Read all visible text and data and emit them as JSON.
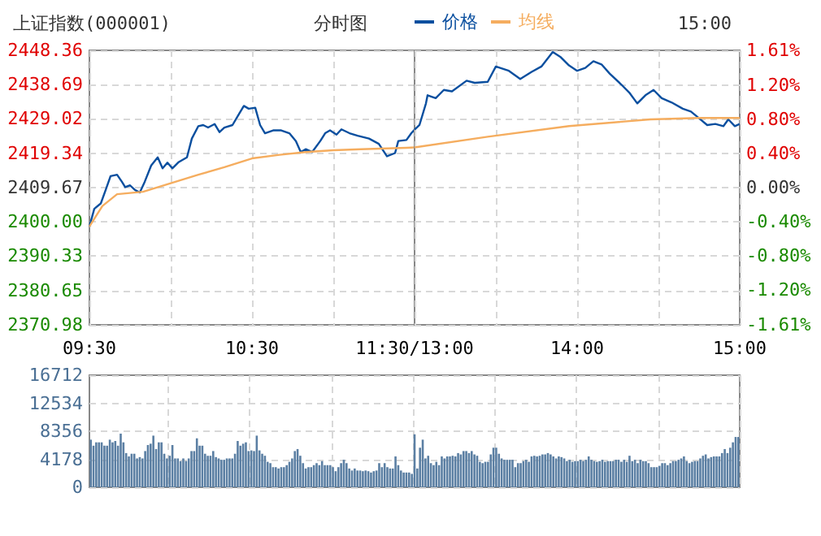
{
  "chart_data": [
    {
      "type": "line",
      "title": "上证指数(000001)",
      "subtitle": "分时图",
      "xlim": [
        9.5,
        11.5
      ],
      "xticks": [
        {
          "value": 9.5,
          "label": "09:30"
        },
        {
          "value": 10,
          "label": null
        },
        {
          "value": 10.5,
          "label": "10:30"
        },
        {
          "value": 11,
          "label": null
        },
        {
          "value": 11.5,
          "label": "11:30/13:00"
        }
      ],
      "ylim": [
        2370.98,
        2448.36
      ],
      "yticks": [
        2370.98,
        2380.65,
        2390.33,
        {
          "value": 2400,
          "label": "2400.00"
        },
        2409.67,
        2419.34,
        2429.02,
        2438.69,
        2448.36
      ],
      "grid": true,
      "legend": "top",
      "marker": "none",
      "line_style": "solid",
      "series": [
        {
          "name": "价格",
          "color": "#0a4f9f",
          "x": [
            9.5,
            9.53,
            9.57,
            9.6,
            9.63,
            9.67,
            9.7,
            9.72,
            9.75,
            9.78,
            9.81,
            9.84,
            9.88,
            9.92,
            9.95,
            9.98,
            10.01,
            10.05,
            10.1,
            10.13,
            10.17,
            10.2,
            10.23,
            10.27,
            10.3,
            10.33,
            10.38,
            10.42,
            10.45,
            10.48,
            10.52,
            10.55,
            10.58,
            10.63,
            10.68,
            10.73,
            10.77,
            10.8,
            10.83,
            10.87,
            10.92,
            10.95,
            10.98,
            11.02,
            11.05,
            11.1,
            11.15,
            11.22,
            11.28,
            11.33,
            11.38,
            11.4,
            11.45,
            11.48,
            11.5
          ],
          "values": [
            2398.7,
            2403.7,
            2405.2,
            2409.0,
            2412.9,
            2413.3,
            2411.3,
            2409.8,
            2410.3,
            2409.0,
            2408.3,
            2411.3,
            2415.9,
            2418.2,
            2415.1,
            2416.7,
            2415.1,
            2416.9,
            2418.2,
            2423.5,
            2427.0,
            2427.3,
            2426.6,
            2427.6,
            2425.3,
            2426.6,
            2427.3,
            2430.4,
            2432.7,
            2431.9,
            2432.2,
            2427.3,
            2425.0,
            2425.8,
            2425.8,
            2425.0,
            2422.8,
            2419.7,
            2420.5,
            2419.7,
            2422.8,
            2425.0,
            2425.8,
            2424.6,
            2426.1,
            2425.0,
            2424.3,
            2423.5,
            2422.0,
            2418.5,
            2419.4,
            2422.8,
            2423.1,
            2425.0,
            2426.0
          ]
        },
        {
          "name": "均线",
          "color": "#f5ad5f",
          "x": [
            9.5,
            9.58,
            9.67,
            9.83,
            10,
            10.17,
            10.33,
            10.5,
            10.67,
            10.83,
            11,
            11.17,
            11.45,
            11.5
          ],
          "values": [
            2398.7,
            2404.5,
            2407.8,
            2408.5,
            2410.9,
            2413.3,
            2415.4,
            2417.9,
            2418.9,
            2419.7,
            2420.2,
            2420.5,
            2420.9,
            2421.0
          ]
        }
      ]
    },
    {
      "type": "line",
      "annotations": [
        "15:00"
      ],
      "xlim": [
        13,
        15
      ],
      "xticks": [
        {
          "value": 13,
          "label": null
        },
        {
          "value": 13.5,
          "label": null
        },
        {
          "value": 14,
          "label": "14:00"
        },
        {
          "value": 14.5,
          "label": null
        },
        {
          "value": 15,
          "label": "15:00"
        }
      ],
      "ylim": [
        2370.98,
        2448.36
      ],
      "yticks": [
        2370.98,
        2380.65,
        2390.33,
        2400,
        2409.67,
        2419.34,
        2429.02,
        2438.69,
        2448.36
      ],
      "y2lim": [
        -1.61,
        1.61
      ],
      "y2ticks": [
        {
          "value": -1.61,
          "label": "-1.61%"
        },
        {
          "value": -1.2,
          "label": "-1.20%"
        },
        {
          "value": -0.8,
          "label": "-0.80%"
        },
        {
          "value": -0.4,
          "label": "-0.40%"
        },
        {
          "value": 0,
          "label": "0.00%"
        },
        {
          "value": 0.4,
          "label": "0.40%"
        },
        {
          "value": 0.8,
          "label": "0.80%"
        },
        {
          "value": 1.2,
          "label": "1.20%"
        },
        {
          "value": 1.61,
          "label": "1.61%"
        }
      ],
      "grid": true,
      "marker": "none",
      "line_style": "solid",
      "tick_labels": "x",
      "series": [
        {
          "color": "#0a4f9f",
          "x": [
            13,
            13.03,
            13.07,
            13.08,
            13.13,
            13.18,
            13.23,
            13.32,
            13.37,
            13.45,
            13.5,
            13.58,
            13.65,
            13.72,
            13.78,
            13.85,
            13.9,
            13.95,
            14,
            14.05,
            14.1,
            14.15,
            14.2,
            14.27,
            14.32,
            14.37,
            14.42,
            14.47,
            14.52,
            14.58,
            14.65,
            14.7,
            14.75,
            14.8,
            14.85,
            14.9,
            14.93,
            14.97,
            15
          ],
          "values": [
            2426.0,
            2427.3,
            2433.4,
            2435.7,
            2434.9,
            2437.2,
            2436.8,
            2439.8,
            2439.2,
            2439.5,
            2443.8,
            2442.6,
            2440.3,
            2442.3,
            2443.8,
            2447.9,
            2446.4,
            2444.1,
            2442.6,
            2443.4,
            2445.3,
            2444.4,
            2441.8,
            2438.8,
            2436.5,
            2433.4,
            2435.7,
            2437.2,
            2434.9,
            2433.7,
            2431.9,
            2431.1,
            2429.2,
            2427.3,
            2427.6,
            2427.0,
            2428.9,
            2427.0,
            2427.6
          ]
        },
        {
          "color": "#f5ad5f",
          "x": [
            13,
            13.45,
            13.95,
            14.45,
            14.75,
            15
          ],
          "values": [
            2421.0,
            2424.0,
            2427.0,
            2428.9,
            2429.3,
            2429.3
          ]
        }
      ]
    },
    {
      "type": "bar",
      "color": "#5b7fa3",
      "categories": [
        null,
        null,
        null,
        null,
        null,
        null,
        null,
        null,
        null,
        null,
        null,
        null,
        null,
        null,
        null,
        null,
        null,
        null,
        null,
        null,
        null,
        null,
        null,
        null,
        null,
        null,
        null,
        null,
        null,
        null,
        null,
        null,
        null,
        null,
        null,
        null,
        null,
        null,
        null,
        null,
        null,
        null,
        null,
        null,
        null,
        null,
        null,
        null,
        null,
        null,
        null,
        null,
        null,
        null,
        null,
        null,
        null,
        null,
        null,
        null,
        null,
        null,
        null,
        null,
        null,
        null,
        null,
        null,
        null,
        null,
        null,
        null,
        null,
        null,
        null,
        null,
        null,
        null,
        null,
        null,
        null,
        null,
        null,
        null,
        null,
        null,
        null,
        null,
        null,
        null,
        null,
        null,
        null,
        null,
        null,
        null,
        null,
        null,
        null,
        null,
        null,
        null,
        null,
        null,
        null,
        null,
        null,
        null,
        null,
        null,
        null,
        null,
        null,
        null,
        null,
        null,
        null,
        null,
        null,
        null,
        null,
        null,
        null,
        null,
        null,
        null,
        null,
        null,
        null,
        null,
        null,
        null,
        null,
        null,
        null,
        null,
        null,
        null,
        null,
        null,
        null,
        null,
        null,
        null,
        null,
        null,
        null,
        null,
        null,
        null,
        null,
        null,
        null,
        null,
        null,
        null,
        null,
        null,
        null,
        null,
        null,
        null,
        null,
        null,
        null,
        null,
        null,
        null,
        null,
        null,
        null,
        null,
        null,
        null,
        null,
        null,
        null,
        null,
        null,
        null,
        null,
        null,
        null,
        null,
        null,
        null,
        null,
        null,
        null,
        null,
        null,
        null,
        null,
        null,
        null,
        null,
        null,
        null,
        null,
        null,
        null,
        null,
        null,
        null,
        null,
        null,
        null,
        null,
        null,
        null,
        null,
        null,
        null,
        null,
        null,
        null,
        null,
        null,
        null,
        null,
        null,
        null,
        null,
        null,
        null,
        null,
        null,
        null,
        null,
        null,
        null,
        null,
        null,
        null,
        null,
        null,
        null,
        null,
        null
      ],
      "ylim": [
        0,
        16712
      ],
      "yticks": [
        0,
        4178,
        8356,
        12534,
        16712
      ],
      "grid": true,
      "tick_labels": "y",
      "values": [
        7100,
        6200,
        6700,
        6700,
        6700,
        6200,
        6200,
        7100,
        6700,
        6900,
        6200,
        8000,
        6700,
        5100,
        4600,
        5000,
        5000,
        4300,
        4500,
        4300,
        5400,
        6300,
        6500,
        7700,
        5700,
        6700,
        6700,
        5000,
        4300,
        4700,
        6300,
        4300,
        4300,
        3900,
        4300,
        3900,
        4300,
        5400,
        5400,
        7300,
        6200,
        6200,
        5000,
        4700,
        4700,
        5400,
        4500,
        4300,
        4100,
        4100,
        4300,
        4300,
        4300,
        5000,
        6900,
        6200,
        6500,
        6700,
        5400,
        5500,
        5400,
        7700,
        5500,
        5000,
        4700,
        3800,
        3600,
        3000,
        3000,
        2800,
        3000,
        3000,
        3300,
        3800,
        4300,
        5400,
        5700,
        4700,
        3600,
        2800,
        3000,
        3000,
        3300,
        3600,
        3300,
        3900,
        3300,
        3300,
        3300,
        3000,
        2400,
        3000,
        3600,
        4100,
        3600,
        2800,
        2500,
        2800,
        2500,
        2500,
        2400,
        2500,
        2400,
        2200,
        2400,
        2500,
        3600,
        3000,
        3600,
        3000,
        2800,
        2800,
        4600,
        3300,
        2500,
        2200,
        2200,
        2200,
        2000,
        7900,
        2800,
        5900,
        7100,
        4300,
        4700,
        3600,
        3300,
        3800,
        3300,
        4600,
        4300,
        4600,
        4600,
        4700,
        4600,
        5100,
        4900,
        5400,
        5400,
        5100,
        5400,
        4900,
        4700,
        3800,
        3600,
        3800,
        3800,
        4900,
        5900,
        5900,
        5000,
        4300,
        4100,
        4100,
        4100,
        4100,
        3000,
        3600,
        3600,
        3900,
        4100,
        3800,
        4600,
        4700,
        4600,
        4700,
        4900,
        4900,
        5100,
        4900,
        4600,
        4300,
        4600,
        4500,
        4300,
        3900,
        4100,
        3800,
        3900,
        3900,
        4100,
        3900,
        4100,
        4600,
        4100,
        3900,
        3800,
        3900,
        4100,
        3800,
        3900,
        3900,
        3900,
        4100,
        4100,
        3800,
        4100,
        3800,
        4700,
        3900,
        4100,
        3600,
        4100,
        3900,
        3900,
        3600,
        3000,
        3000,
        3000,
        3200,
        3600,
        3600,
        3300,
        3600,
        3900,
        3900,
        4100,
        4300,
        4600,
        3900,
        3600,
        3800,
        3900,
        3900,
        4300,
        4700,
        4900,
        4300,
        4500,
        4600,
        4600,
        4600,
        5100,
        5700,
        5100,
        5900,
        6700,
        7500,
        7500
      ]
    }
  ]
}
